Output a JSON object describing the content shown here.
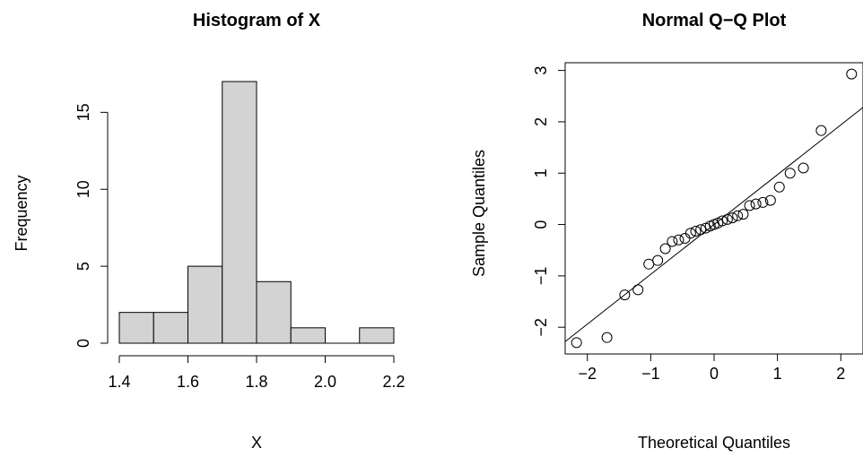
{
  "chart_data": [
    {
      "type": "histogram",
      "title": "Histogram of X",
      "xlabel": "X",
      "ylabel": "Frequency",
      "bins": [
        {
          "from": 1.4,
          "to": 1.5,
          "count": 2
        },
        {
          "from": 1.5,
          "to": 1.6,
          "count": 2
        },
        {
          "from": 1.6,
          "to": 1.7,
          "count": 5
        },
        {
          "from": 1.7,
          "to": 1.8,
          "count": 17
        },
        {
          "from": 1.8,
          "to": 1.9,
          "count": 4
        },
        {
          "from": 1.9,
          "to": 2.0,
          "count": 1
        },
        {
          "from": 2.0,
          "to": 2.1,
          "count": 0
        },
        {
          "from": 2.1,
          "to": 2.2,
          "count": 1
        }
      ],
      "xlim": [
        1.4,
        2.2
      ],
      "ylim": [
        0,
        17
      ],
      "x_ticks": [
        1.4,
        1.6,
        1.8,
        2.0,
        2.2
      ],
      "x_tick_labels": [
        "1.4",
        "1.6",
        "1.8",
        "2.0",
        "2.2"
      ],
      "y_ticks": [
        0,
        5,
        10,
        15
      ],
      "y_tick_labels": [
        "0",
        "5",
        "10",
        "15"
      ],
      "bar_color": "#d3d3d3",
      "grid": false
    },
    {
      "type": "scatter",
      "title": "Normal Q−Q Plot",
      "xlabel": "Theoretical Quantiles",
      "ylabel": "Sample Quantiles",
      "points": [
        [
          -2.17,
          -2.3
        ],
        [
          -1.69,
          -2.2
        ],
        [
          -1.41,
          -1.37
        ],
        [
          -1.2,
          -1.27
        ],
        [
          -1.03,
          -0.77
        ],
        [
          -0.89,
          -0.7
        ],
        [
          -0.77,
          -0.47
        ],
        [
          -0.66,
          -0.33
        ],
        [
          -0.56,
          -0.3
        ],
        [
          -0.46,
          -0.27
        ],
        [
          -0.37,
          -0.17
        ],
        [
          -0.29,
          -0.13
        ],
        [
          -0.21,
          -0.1
        ],
        [
          -0.13,
          -0.07
        ],
        [
          -0.06,
          -0.03
        ],
        [
          0.0,
          0.0
        ],
        [
          0.06,
          0.03
        ],
        [
          0.13,
          0.07
        ],
        [
          0.21,
          0.1
        ],
        [
          0.29,
          0.13
        ],
        [
          0.37,
          0.17
        ],
        [
          0.46,
          0.2
        ],
        [
          0.56,
          0.37
        ],
        [
          0.66,
          0.4
        ],
        [
          0.77,
          0.43
        ],
        [
          0.89,
          0.47
        ],
        [
          1.03,
          0.73
        ],
        [
          1.2,
          1.0
        ],
        [
          1.41,
          1.1
        ],
        [
          1.69,
          1.83
        ],
        [
          2.17,
          2.93
        ]
      ],
      "reference_line": {
        "intercept": 0.0,
        "slope": 0.97
      },
      "xlim": [
        -2.35,
        2.35
      ],
      "ylim": [
        -2.52,
        3.15
      ],
      "x_ticks": [
        -2,
        -1,
        0,
        1,
        2
      ],
      "x_tick_labels": [
        "−2",
        "−1",
        "0",
        "1",
        "2"
      ],
      "y_ticks": [
        -2,
        -1,
        0,
        1,
        2,
        3
      ],
      "y_tick_labels": [
        "−2",
        "−1",
        "0",
        "1",
        "2",
        "3"
      ],
      "grid": false
    }
  ]
}
